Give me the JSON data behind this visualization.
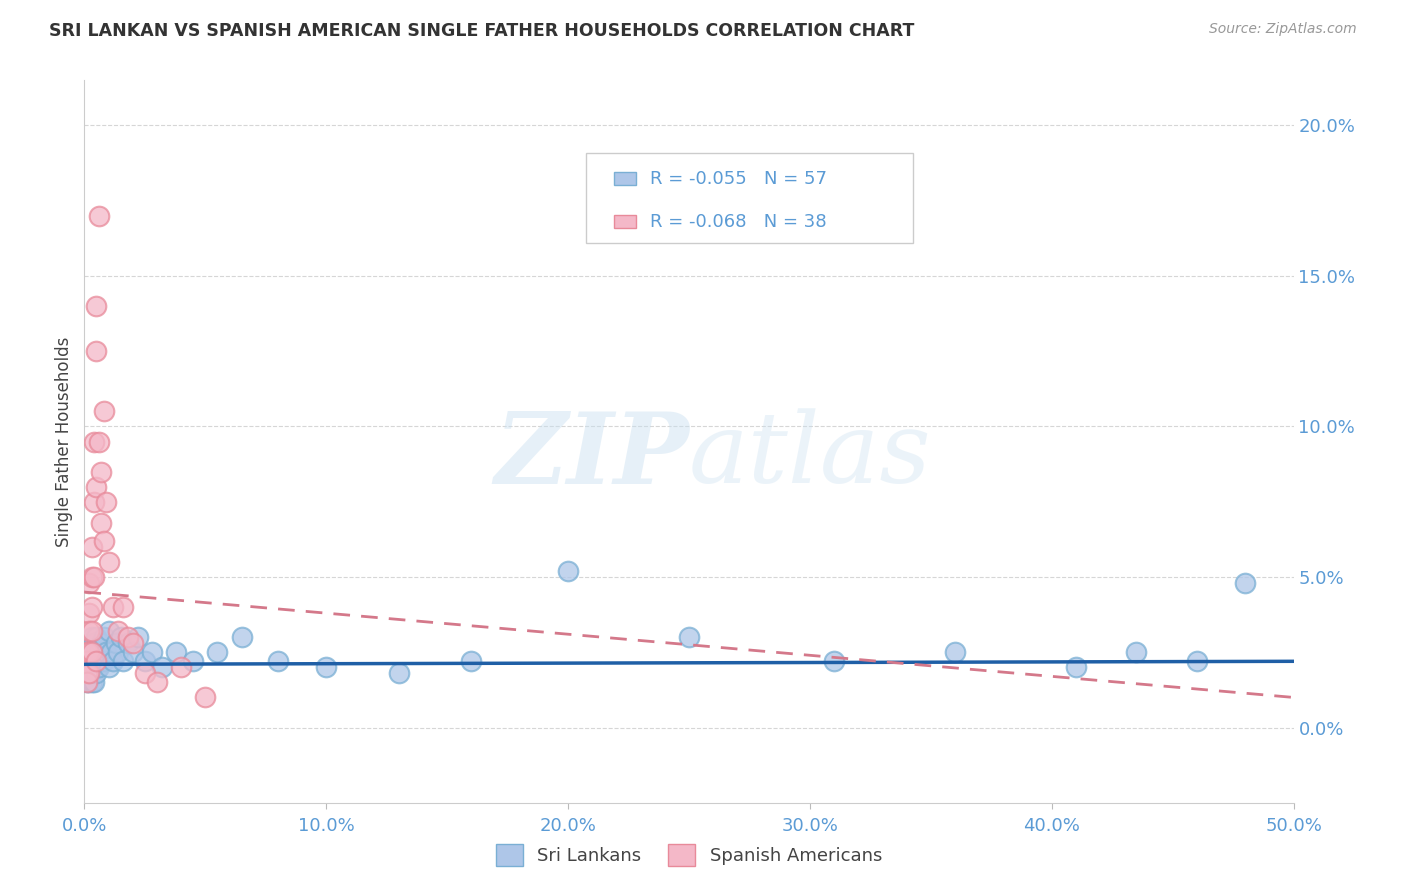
{
  "title": "SRI LANKAN VS SPANISH AMERICAN SINGLE FATHER HOUSEHOLDS CORRELATION CHART",
  "source": "Source: ZipAtlas.com",
  "ylabel_label": "Single Father Households",
  "xlim": [
    0.0,
    0.5
  ],
  "ylim": [
    -0.025,
    0.215
  ],
  "sri_lankan_color": "#aec6e8",
  "sri_lankan_edge": "#7aafd4",
  "spanish_color": "#f4b8c8",
  "spanish_edge": "#e88a9a",
  "sri_trend_color": "#1f5fa6",
  "spa_trend_color": "#d4788a",
  "sri_lankan_R": -0.055,
  "sri_lankan_N": 57,
  "spanish_R": -0.068,
  "spanish_N": 38,
  "legend_sri": "Sri Lankans",
  "legend_spanish": "Spanish Americans",
  "watermark": "ZIPatlas",
  "background_color": "#ffffff",
  "grid_color": "#cccccc",
  "title_color": "#333333",
  "axis_tick_color": "#5b9bd5",
  "sri_x": [
    0.001,
    0.001,
    0.001,
    0.002,
    0.002,
    0.002,
    0.002,
    0.003,
    0.003,
    0.003,
    0.003,
    0.003,
    0.004,
    0.004,
    0.004,
    0.004,
    0.005,
    0.005,
    0.005,
    0.005,
    0.006,
    0.006,
    0.007,
    0.007,
    0.008,
    0.008,
    0.009,
    0.01,
    0.01,
    0.011,
    0.012,
    0.013,
    0.014,
    0.015,
    0.016,
    0.018,
    0.02,
    0.022,
    0.025,
    0.028,
    0.032,
    0.038,
    0.045,
    0.055,
    0.065,
    0.08,
    0.1,
    0.13,
    0.16,
    0.2,
    0.25,
    0.31,
    0.36,
    0.41,
    0.435,
    0.46,
    0.48
  ],
  "sri_y": [
    0.022,
    0.018,
    0.015,
    0.025,
    0.02,
    0.018,
    0.015,
    0.03,
    0.025,
    0.022,
    0.018,
    0.015,
    0.028,
    0.022,
    0.02,
    0.015,
    0.03,
    0.025,
    0.02,
    0.018,
    0.025,
    0.02,
    0.028,
    0.022,
    0.03,
    0.022,
    0.025,
    0.032,
    0.02,
    0.025,
    0.022,
    0.028,
    0.025,
    0.03,
    0.022,
    0.028,
    0.025,
    0.03,
    0.022,
    0.025,
    0.02,
    0.025,
    0.022,
    0.025,
    0.03,
    0.022,
    0.02,
    0.018,
    0.022,
    0.052,
    0.03,
    0.022,
    0.025,
    0.02,
    0.025,
    0.022,
    0.048
  ],
  "spa_x": [
    0.001,
    0.001,
    0.001,
    0.001,
    0.002,
    0.002,
    0.002,
    0.002,
    0.002,
    0.003,
    0.003,
    0.003,
    0.003,
    0.003,
    0.004,
    0.004,
    0.004,
    0.005,
    0.005,
    0.005,
    0.005,
    0.006,
    0.006,
    0.007,
    0.007,
    0.008,
    0.008,
    0.009,
    0.01,
    0.012,
    0.014,
    0.016,
    0.018,
    0.02,
    0.025,
    0.03,
    0.04,
    0.05
  ],
  "spa_y": [
    0.025,
    0.022,
    0.018,
    0.015,
    0.048,
    0.038,
    0.032,
    0.025,
    0.018,
    0.06,
    0.05,
    0.04,
    0.032,
    0.025,
    0.095,
    0.075,
    0.05,
    0.14,
    0.125,
    0.08,
    0.022,
    0.17,
    0.095,
    0.085,
    0.068,
    0.105,
    0.062,
    0.075,
    0.055,
    0.04,
    0.032,
    0.04,
    0.03,
    0.028,
    0.018,
    0.015,
    0.02,
    0.01
  ]
}
